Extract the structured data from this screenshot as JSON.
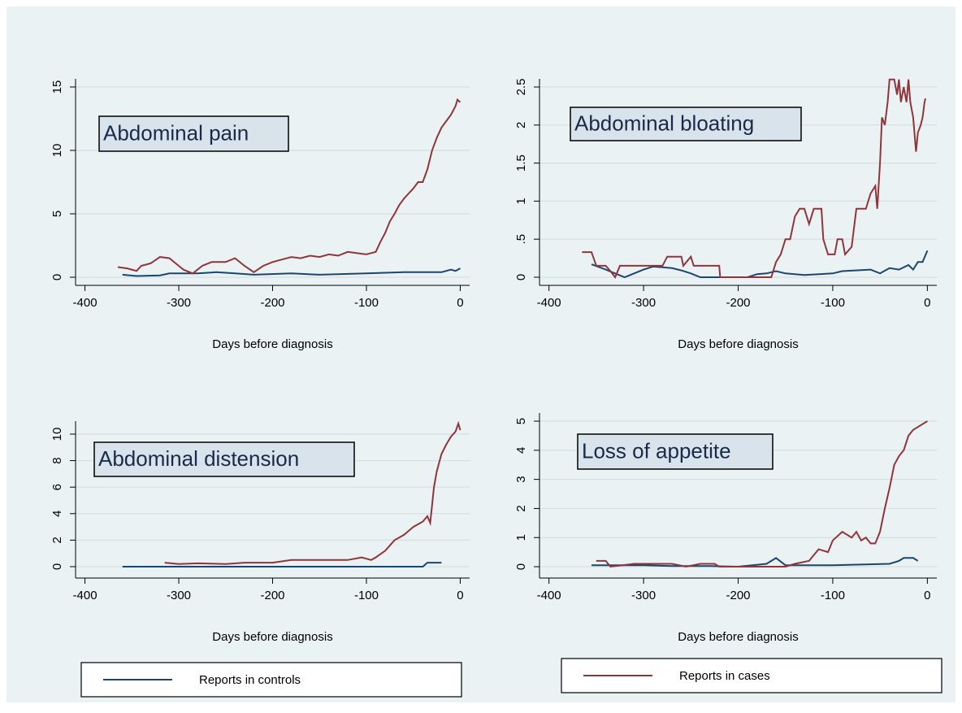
{
  "chart_data": [
    {
      "type": "line",
      "annotation": "Abdominal pain",
      "xlabel": "Days before diagnosis",
      "xlim": [
        -410,
        10
      ],
      "xticks": [
        -400,
        -300,
        -200,
        -100,
        0
      ],
      "ylim": [
        -0.64,
        15.64
      ],
      "yticks": [
        0,
        5,
        10,
        15
      ],
      "grid": true,
      "series": [
        {
          "color": "#1a476f",
          "x": [
            -360,
            -345,
            -320,
            -310,
            -280,
            -260,
            -240,
            -220,
            -180,
            -150,
            -100,
            -60,
            -20,
            -10,
            -5,
            0
          ],
          "values": [
            0.2,
            0.1,
            0.15,
            0.3,
            0.3,
            0.4,
            0.3,
            0.2,
            0.3,
            0.2,
            0.3,
            0.4,
            0.4,
            0.6,
            0.5,
            0.7
          ]
        },
        {
          "color": "#90353b",
          "x": [
            -365,
            -355,
            -345,
            -340,
            -330,
            -320,
            -310,
            -300,
            -295,
            -285,
            -275,
            -265,
            -250,
            -240,
            -230,
            -220,
            -210,
            -200,
            -190,
            -180,
            -170,
            -160,
            -150,
            -140,
            -130,
            -120,
            -110,
            -100,
            -90,
            -85,
            -80,
            -75,
            -70,
            -65,
            -60,
            -55,
            -50,
            -45,
            -40,
            -35,
            -30,
            -25,
            -20,
            -15,
            -10,
            -5,
            -3,
            0
          ],
          "values": [
            0.8,
            0.7,
            0.5,
            0.9,
            1.1,
            1.6,
            1.5,
            0.9,
            0.6,
            0.3,
            0.9,
            1.2,
            1.2,
            1.5,
            0.9,
            0.4,
            0.9,
            1.2,
            1.4,
            1.6,
            1.5,
            1.7,
            1.6,
            1.8,
            1.7,
            2.0,
            1.9,
            1.8,
            2.0,
            2.8,
            3.5,
            4.4,
            5.0,
            5.7,
            6.2,
            6.6,
            7.0,
            7.5,
            7.5,
            8.5,
            10.0,
            11.0,
            11.8,
            12.3,
            12.8,
            13.5,
            14.0,
            13.8
          ]
        }
      ]
    },
    {
      "type": "line",
      "annotation": "Abdominal bloating",
      "xlabel": "Days before diagnosis",
      "xlim": [
        -410,
        10
      ],
      "xticks": [
        -400,
        -300,
        -200,
        -100,
        0
      ],
      "ylim": [
        -0.107,
        2.607
      ],
      "yticks": [
        0,
        {
          "value": 0.5,
          "label": ".5"
        },
        1,
        1.5,
        2,
        2.5
      ],
      "grid": true,
      "series": [
        {
          "color": "#1a476f",
          "x": [
            -355,
            -340,
            -330,
            -320,
            -310,
            -300,
            -290,
            -280,
            -270,
            -260,
            -250,
            -240,
            -190,
            -180,
            -170,
            -160,
            -150,
            -130,
            -100,
            -90,
            -60,
            -50,
            -40,
            -30,
            -20,
            -15,
            -10,
            -5,
            0
          ],
          "values": [
            0.17,
            0.1,
            0.05,
            0,
            0.05,
            0.1,
            0.14,
            0.13,
            0.12,
            0.09,
            0.05,
            0,
            0,
            0.04,
            0.05,
            0.08,
            0.05,
            0.03,
            0.05,
            0.08,
            0.1,
            0.05,
            0.12,
            0.1,
            0.16,
            0.1,
            0.2,
            0.2,
            0.35
          ]
        },
        {
          "color": "#90353b",
          "x": [
            -365,
            -355,
            -350,
            -340,
            -335,
            -330,
            -325,
            -300,
            -280,
            -275,
            -260,
            -258,
            -250,
            -247,
            -220,
            -219,
            -165,
            -160,
            -155,
            -150,
            -145,
            -140,
            -135,
            -130,
            -125,
            -120,
            -112,
            -110,
            -105,
            -98,
            -95,
            -90,
            -87,
            -80,
            -75,
            -70,
            -65,
            -60,
            -55,
            -53,
            -50,
            -48,
            -45,
            -42,
            -40,
            -35,
            -32,
            -30,
            -28,
            -25,
            -22,
            -20,
            -18,
            -15,
            -12,
            -10,
            -7,
            -5,
            -3,
            -2
          ],
          "values": [
            0.33,
            0.33,
            0.15,
            0.15,
            0.08,
            0,
            0.15,
            0.15,
            0.15,
            0.27,
            0.27,
            0.15,
            0.27,
            0.15,
            0.15,
            0,
            0,
            0.2,
            0.3,
            0.5,
            0.5,
            0.8,
            0.9,
            0.9,
            0.7,
            0.9,
            0.9,
            0.5,
            0.3,
            0.3,
            0.5,
            0.5,
            0.3,
            0.4,
            0.9,
            0.9,
            0.9,
            1.1,
            1.2,
            0.9,
            1.5,
            2.1,
            2.0,
            2.3,
            2.6,
            2.6,
            2.4,
            2.6,
            2.3,
            2.5,
            2.3,
            2.6,
            2.3,
            2.1,
            1.65,
            1.9,
            2.0,
            2.1,
            2.3,
            2.35
          ]
        }
      ]
    },
    {
      "type": "line",
      "annotation": "Abdominal distension",
      "xlabel": "Days before diagnosis",
      "xlim": [
        -410,
        10
      ],
      "xticks": [
        -400,
        -300,
        -200,
        -100,
        0
      ],
      "ylim": [
        -0.86,
        10.98
      ],
      "yticks": [
        0,
        2,
        4,
        6,
        8,
        10
      ],
      "grid": true,
      "series": [
        {
          "color": "#1a476f",
          "x": [
            -360,
            -300,
            -200,
            -100,
            -40,
            -35,
            -20
          ],
          "values": [
            0,
            0,
            0,
            0,
            0,
            0.3,
            0.3
          ]
        },
        {
          "color": "#90353b",
          "x": [
            -315,
            -300,
            -280,
            -250,
            -230,
            -200,
            -180,
            -150,
            -120,
            -105,
            -95,
            -90,
            -80,
            -70,
            -60,
            -50,
            -40,
            -35,
            -32,
            -28,
            -25,
            -20,
            -15,
            -10,
            -5,
            -2,
            0
          ],
          "values": [
            0.3,
            0.2,
            0.25,
            0.2,
            0.3,
            0.3,
            0.5,
            0.5,
            0.5,
            0.7,
            0.5,
            0.7,
            1.2,
            2.0,
            2.4,
            3.0,
            3.4,
            3.8,
            3.3,
            6.0,
            7.2,
            8.5,
            9.2,
            9.8,
            10.2,
            10.8,
            10.3
          ]
        }
      ]
    },
    {
      "type": "line",
      "annotation": "Loss of appetite",
      "xlabel": "Days before diagnosis",
      "xlim": [
        -410,
        10
      ],
      "xticks": [
        -400,
        -300,
        -200,
        -100,
        0
      ],
      "ylim": [
        -0.39,
        5.28
      ],
      "yticks": [
        0,
        1,
        2,
        3,
        4,
        5
      ],
      "grid": true,
      "series": [
        {
          "color": "#1a476f",
          "x": [
            -355,
            -330,
            -300,
            -270,
            -230,
            -200,
            -185,
            -170,
            -160,
            -150,
            -100,
            -40,
            -30,
            -25,
            -15,
            -10
          ],
          "values": [
            0.05,
            0.05,
            0.05,
            0.02,
            0.02,
            0,
            0.05,
            0.1,
            0.3,
            0.05,
            0.05,
            0.1,
            0.2,
            0.3,
            0.3,
            0.2
          ]
        },
        {
          "color": "#90353b",
          "x": [
            -350,
            -340,
            -335,
            -310,
            -290,
            -270,
            -255,
            -240,
            -225,
            -220,
            -200,
            -180,
            -150,
            -140,
            -125,
            -120,
            -115,
            -105,
            -100,
            -90,
            -80,
            -75,
            -70,
            -65,
            -60,
            -55,
            -50,
            -45,
            -40,
            -35,
            -30,
            -25,
            -20,
            -15,
            -10,
            -5,
            0
          ],
          "values": [
            0.2,
            0.2,
            0,
            0.1,
            0.1,
            0.1,
            0,
            0.1,
            0.1,
            0,
            0,
            0,
            0,
            0.1,
            0.2,
            0.4,
            0.6,
            0.5,
            0.9,
            1.2,
            1.0,
            1.2,
            0.9,
            1.0,
            0.8,
            0.8,
            1.2,
            2.0,
            2.7,
            3.5,
            3.8,
            4.0,
            4.5,
            4.7,
            4.8,
            4.9,
            5.0
          ]
        }
      ]
    }
  ],
  "legend": [
    {
      "name": "Reports in controls",
      "color": "#1a476f"
    },
    {
      "name": "Reports in cases",
      "color": "#90353b"
    }
  ]
}
